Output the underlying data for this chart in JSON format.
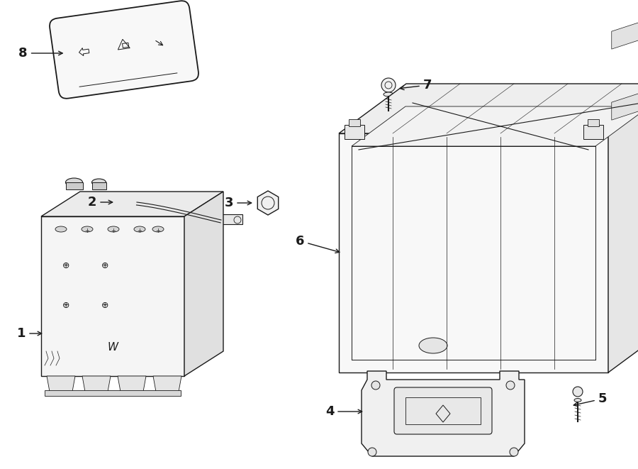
{
  "background_color": "#ffffff",
  "line_color": "#1a1a1a",
  "line_width": 1.0,
  "label_fontsize": 12,
  "fig_width": 9.0,
  "fig_height": 6.61,
  "dpi": 100
}
